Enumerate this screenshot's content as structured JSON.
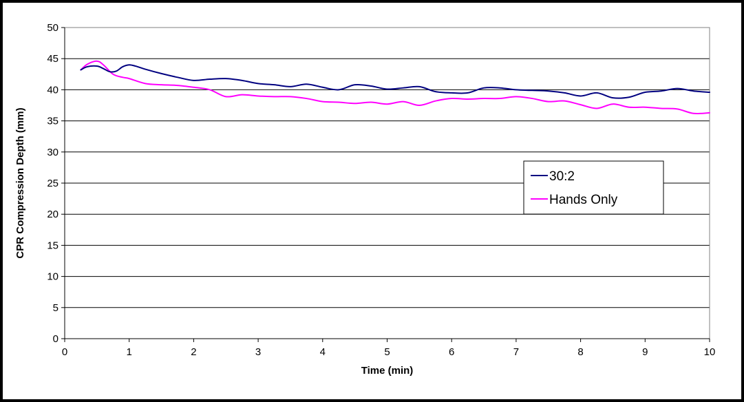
{
  "chart_data": {
    "type": "line",
    "title": "",
    "xlabel": "Time (min)",
    "ylabel": "CPR Compression Depth (mm)",
    "xlim": [
      0,
      10
    ],
    "ylim": [
      0,
      50
    ],
    "x_ticks": [
      0,
      1,
      2,
      3,
      4,
      5,
      6,
      7,
      8,
      9,
      10
    ],
    "y_ticks": [
      0,
      5,
      10,
      15,
      20,
      25,
      30,
      35,
      40,
      45,
      50
    ],
    "grid": "horizontal",
    "legend_position": "right",
    "series": [
      {
        "name": "30:2",
        "color": "#000080",
        "points": [
          [
            0.25,
            43.2
          ],
          [
            0.35,
            43.7
          ],
          [
            0.5,
            43.8
          ],
          [
            0.6,
            43.4
          ],
          [
            0.7,
            42.9
          ],
          [
            0.8,
            43.0
          ],
          [
            0.9,
            43.7
          ],
          [
            1.0,
            44.0
          ],
          [
            1.1,
            43.8
          ],
          [
            1.25,
            43.3
          ],
          [
            1.5,
            42.6
          ],
          [
            1.75,
            42.0
          ],
          [
            2.0,
            41.5
          ],
          [
            2.25,
            41.7
          ],
          [
            2.5,
            41.8
          ],
          [
            2.75,
            41.5
          ],
          [
            3.0,
            41.0
          ],
          [
            3.25,
            40.8
          ],
          [
            3.5,
            40.5
          ],
          [
            3.75,
            40.9
          ],
          [
            4.0,
            40.4
          ],
          [
            4.25,
            40.0
          ],
          [
            4.5,
            40.8
          ],
          [
            4.75,
            40.6
          ],
          [
            5.0,
            40.1
          ],
          [
            5.25,
            40.3
          ],
          [
            5.5,
            40.5
          ],
          [
            5.75,
            39.7
          ],
          [
            6.0,
            39.5
          ],
          [
            6.25,
            39.5
          ],
          [
            6.5,
            40.3
          ],
          [
            6.75,
            40.3
          ],
          [
            7.0,
            40.0
          ],
          [
            7.25,
            39.9
          ],
          [
            7.5,
            39.8
          ],
          [
            7.75,
            39.5
          ],
          [
            8.0,
            39.0
          ],
          [
            8.25,
            39.5
          ],
          [
            8.5,
            38.7
          ],
          [
            8.75,
            38.8
          ],
          [
            9.0,
            39.6
          ],
          [
            9.25,
            39.8
          ],
          [
            9.5,
            40.2
          ],
          [
            9.75,
            39.8
          ],
          [
            10.0,
            39.6
          ]
        ]
      },
      {
        "name": "Hands Only",
        "color": "#ff00ff",
        "points": [
          [
            0.25,
            43.2
          ],
          [
            0.35,
            44.1
          ],
          [
            0.5,
            44.6
          ],
          [
            0.6,
            44.0
          ],
          [
            0.75,
            42.5
          ],
          [
            0.9,
            42.0
          ],
          [
            1.0,
            41.8
          ],
          [
            1.25,
            41.0
          ],
          [
            1.5,
            40.8
          ],
          [
            1.75,
            40.7
          ],
          [
            2.0,
            40.4
          ],
          [
            2.25,
            40.0
          ],
          [
            2.5,
            38.9
          ],
          [
            2.75,
            39.2
          ],
          [
            3.0,
            39.0
          ],
          [
            3.25,
            38.9
          ],
          [
            3.5,
            38.9
          ],
          [
            3.75,
            38.6
          ],
          [
            4.0,
            38.1
          ],
          [
            4.25,
            38.0
          ],
          [
            4.5,
            37.8
          ],
          [
            4.75,
            38.0
          ],
          [
            5.0,
            37.7
          ],
          [
            5.25,
            38.1
          ],
          [
            5.5,
            37.5
          ],
          [
            5.75,
            38.2
          ],
          [
            6.0,
            38.6
          ],
          [
            6.25,
            38.5
          ],
          [
            6.5,
            38.6
          ],
          [
            6.75,
            38.6
          ],
          [
            7.0,
            38.9
          ],
          [
            7.25,
            38.6
          ],
          [
            7.5,
            38.1
          ],
          [
            7.75,
            38.2
          ],
          [
            8.0,
            37.6
          ],
          [
            8.25,
            37.0
          ],
          [
            8.5,
            37.7
          ],
          [
            8.75,
            37.2
          ],
          [
            9.0,
            37.2
          ],
          [
            9.25,
            37.0
          ],
          [
            9.5,
            36.9
          ],
          [
            9.75,
            36.2
          ],
          [
            10.0,
            36.3
          ]
        ]
      }
    ]
  }
}
